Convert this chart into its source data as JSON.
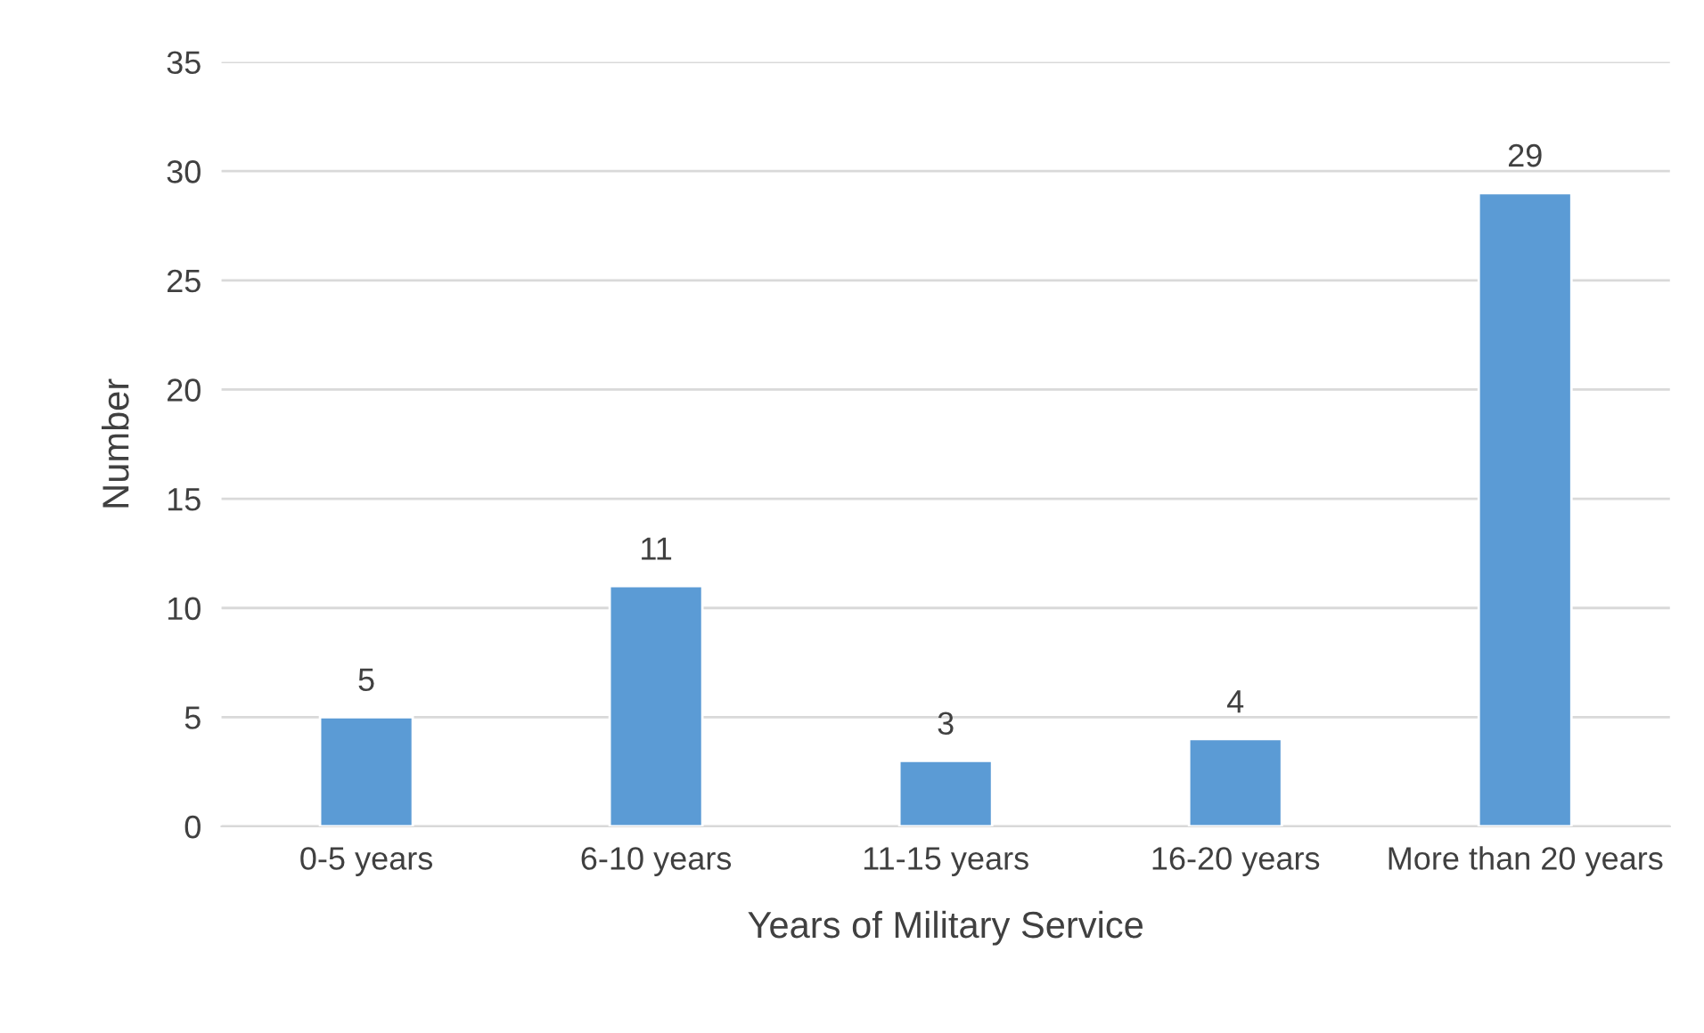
{
  "chart_data": {
    "type": "bar",
    "xlabel": "Years of Military Service",
    "ylabel": "Number",
    "categories": [
      "0-5 years",
      "6-10 years",
      "11-15 years",
      "16-20 years",
      "More than 20 years"
    ],
    "values": [
      5,
      11,
      3,
      4,
      29
    ],
    "color": "#5b9bd5",
    "ylim": [
      0,
      35
    ],
    "yticks": [
      0,
      5,
      10,
      15,
      20,
      25,
      30,
      35
    ],
    "grid": "y",
    "data_labels": true
  }
}
